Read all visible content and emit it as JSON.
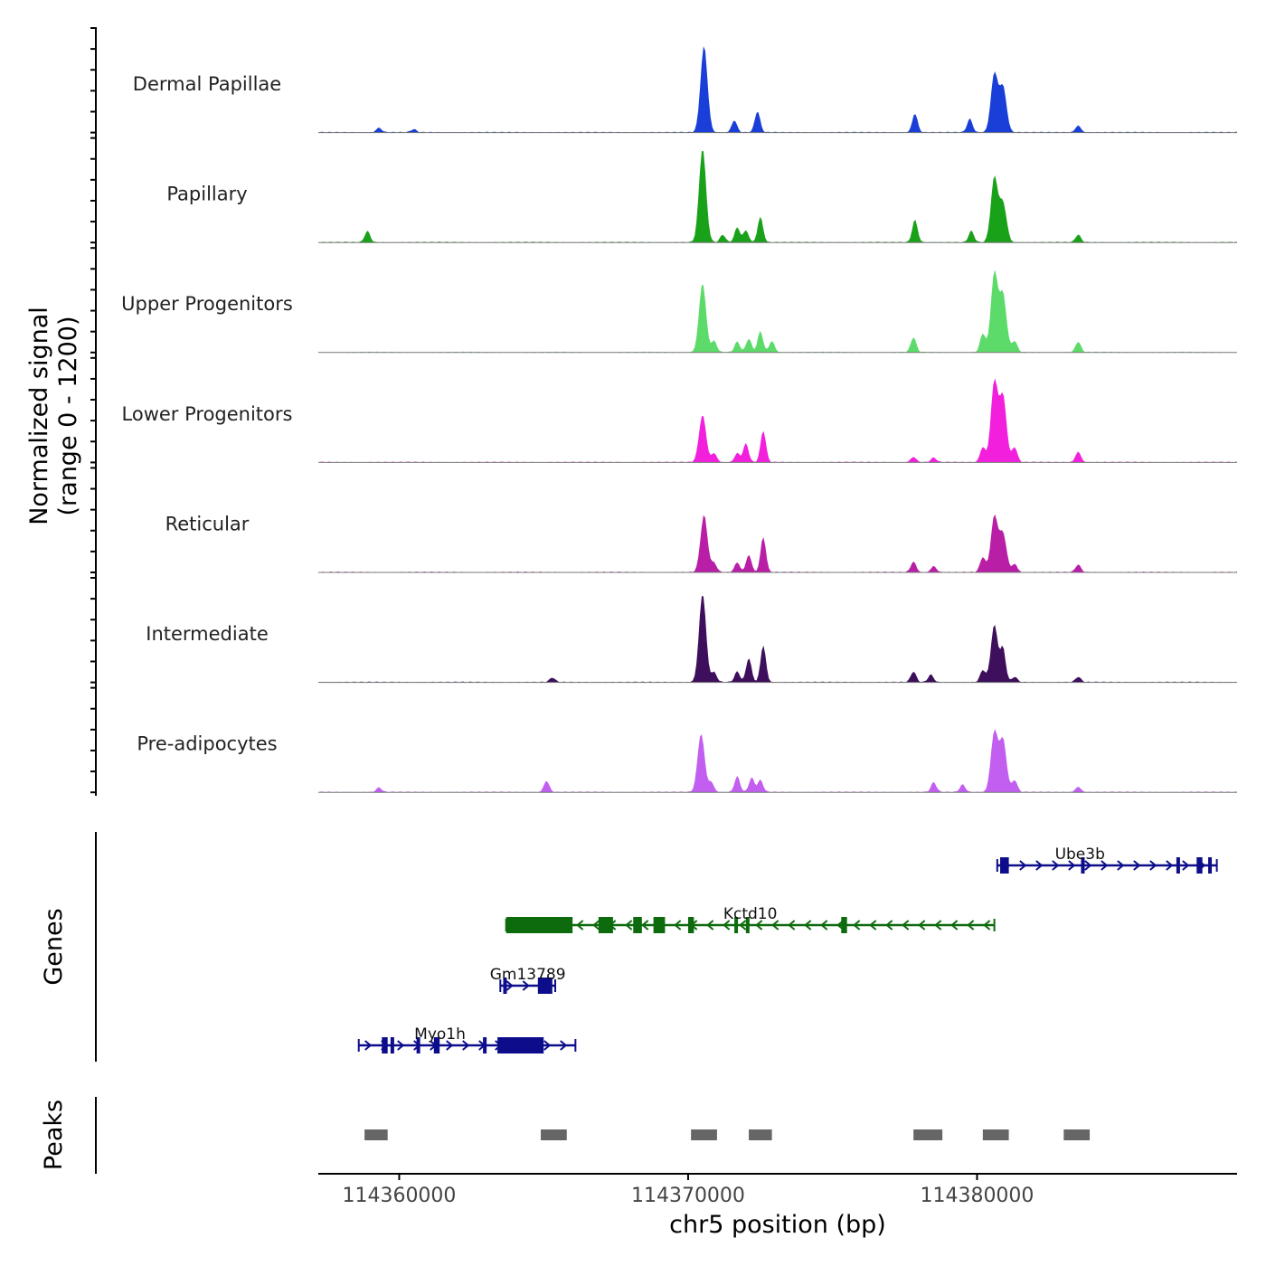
{
  "chart_data": {
    "type": "area",
    "title": "",
    "xlabel": "chr5 position (bp)",
    "ylabel_line1": "Normalized signal",
    "ylabel_line2": "(range 0 - 1200)",
    "ylim": [
      0,
      1200
    ],
    "xlim": [
      114357200,
      114389000
    ],
    "x_ticks": [
      {
        "value": 114360000,
        "label": "114360000"
      },
      {
        "value": 114370000,
        "label": "114370000"
      },
      {
        "value": 114380000,
        "label": "114380000"
      }
    ],
    "tracks": [
      {
        "name": "Dermal Papillae",
        "color": "#1a3fd8",
        "peaks": [
          [
            114370550,
            1150
          ],
          [
            114372400,
            280
          ],
          [
            114371600,
            160
          ],
          [
            114377850,
            250
          ],
          [
            114379750,
            180
          ],
          [
            114380600,
            780
          ],
          [
            114380900,
            600
          ],
          [
            114383500,
            90
          ],
          [
            114359300,
            60
          ],
          [
            114360500,
            40
          ]
        ]
      },
      {
        "name": "Papillary",
        "color": "#1aa11a",
        "peaks": [
          [
            114370500,
            1250
          ],
          [
            114371200,
            100
          ],
          [
            114371700,
            200
          ],
          [
            114372000,
            160
          ],
          [
            114372500,
            340
          ],
          [
            114377850,
            300
          ],
          [
            114379800,
            150
          ],
          [
            114380600,
            860
          ],
          [
            114380900,
            520
          ],
          [
            114383500,
            100
          ],
          [
            114358900,
            150
          ]
        ]
      },
      {
        "name": "Upper Progenitors",
        "color": "#5ddb6a",
        "peaks": [
          [
            114370500,
            920
          ],
          [
            114370900,
            150
          ],
          [
            114371700,
            140
          ],
          [
            114372100,
            180
          ],
          [
            114372500,
            280
          ],
          [
            114372900,
            150
          ],
          [
            114377800,
            200
          ],
          [
            114380200,
            250
          ],
          [
            114380600,
            1050
          ],
          [
            114380900,
            760
          ],
          [
            114381300,
            150
          ],
          [
            114383500,
            140
          ]
        ]
      },
      {
        "name": "Lower Progenitors",
        "color": "#f21fdc",
        "peaks": [
          [
            114370500,
            630
          ],
          [
            114370900,
            120
          ],
          [
            114371700,
            120
          ],
          [
            114372000,
            250
          ],
          [
            114372600,
            420
          ],
          [
            114377800,
            70
          ],
          [
            114378500,
            60
          ],
          [
            114380200,
            200
          ],
          [
            114380600,
            1070
          ],
          [
            114380900,
            870
          ],
          [
            114381300,
            200
          ],
          [
            114383500,
            140
          ]
        ]
      },
      {
        "name": "Reticular",
        "color": "#b81ea6",
        "peaks": [
          [
            114370550,
            760
          ],
          [
            114370900,
            120
          ],
          [
            114371700,
            130
          ],
          [
            114372100,
            230
          ],
          [
            114372600,
            470
          ],
          [
            114377800,
            140
          ],
          [
            114378500,
            80
          ],
          [
            114380200,
            200
          ],
          [
            114380600,
            740
          ],
          [
            114380900,
            510
          ],
          [
            114381300,
            110
          ],
          [
            114383500,
            100
          ]
        ]
      },
      {
        "name": "Intermediate",
        "color": "#3d0f5c",
        "peaks": [
          [
            114370500,
            1180
          ],
          [
            114370900,
            130
          ],
          [
            114371700,
            140
          ],
          [
            114372100,
            320
          ],
          [
            114372600,
            490
          ],
          [
            114377800,
            140
          ],
          [
            114378400,
            100
          ],
          [
            114380200,
            160
          ],
          [
            114380600,
            760
          ],
          [
            114380900,
            440
          ],
          [
            114381300,
            70
          ],
          [
            114383500,
            70
          ],
          [
            114365300,
            60
          ]
        ]
      },
      {
        "name": "Pre-adipocytes",
        "color": "#c25ef0",
        "peaks": [
          [
            114370450,
            780
          ],
          [
            114370800,
            130
          ],
          [
            114371700,
            210
          ],
          [
            114372200,
            190
          ],
          [
            114372500,
            160
          ],
          [
            114378500,
            130
          ],
          [
            114379500,
            100
          ],
          [
            114380600,
            800
          ],
          [
            114380900,
            690
          ],
          [
            114381300,
            160
          ],
          [
            114383500,
            70
          ],
          [
            114365100,
            150
          ],
          [
            114359300,
            60
          ]
        ]
      }
    ],
    "genes_label": "Genes",
    "genes": [
      {
        "name": "Ube3b",
        "color": "#0d0d8c",
        "strand": "+",
        "start": 114380700,
        "end": 114388300,
        "exons": [
          [
            114380800,
            114381100
          ],
          [
            114383600,
            114383700
          ],
          [
            114386900,
            114387000
          ],
          [
            114387600,
            114387800
          ],
          [
            114388000,
            114388100
          ]
        ]
      },
      {
        "name": "Kctd10",
        "color": "#0d6b0d",
        "strand": "-",
        "start": 114363700,
        "end": 114380600,
        "exons": [
          [
            114363700,
            114366000
          ],
          [
            114366900,
            114367400
          ],
          [
            114368100,
            114368400
          ],
          [
            114368800,
            114369200
          ],
          [
            114370000,
            114370200
          ],
          [
            114371600,
            114371700
          ],
          [
            114372000,
            114372100
          ],
          [
            114375300,
            114375500
          ]
        ]
      },
      {
        "name": "Gm13789",
        "color": "#0d0d8c",
        "strand": "+",
        "start": 114363500,
        "end": 114365400,
        "exons": [
          [
            114363600,
            114363700
          ],
          [
            114364800,
            114365300
          ]
        ]
      },
      {
        "name": "Myo1h",
        "color": "#0d0d8c",
        "strand": "+",
        "start": 114358600,
        "end": 114366100,
        "exons": [
          [
            114359400,
            114359600
          ],
          [
            114359700,
            114359800
          ],
          [
            114360600,
            114360700
          ],
          [
            114361200,
            114361400
          ],
          [
            114362900,
            114363000
          ],
          [
            114363400,
            114365000
          ]
        ]
      }
    ],
    "peaks_label": "Peaks",
    "peak_regions": [
      [
        114358800,
        114359600
      ],
      [
        114364900,
        114365800
      ],
      [
        114370100,
        114371000
      ],
      [
        114372100,
        114372900
      ],
      [
        114377800,
        114378800
      ],
      [
        114380200,
        114381100
      ],
      [
        114383000,
        114383900
      ]
    ]
  }
}
